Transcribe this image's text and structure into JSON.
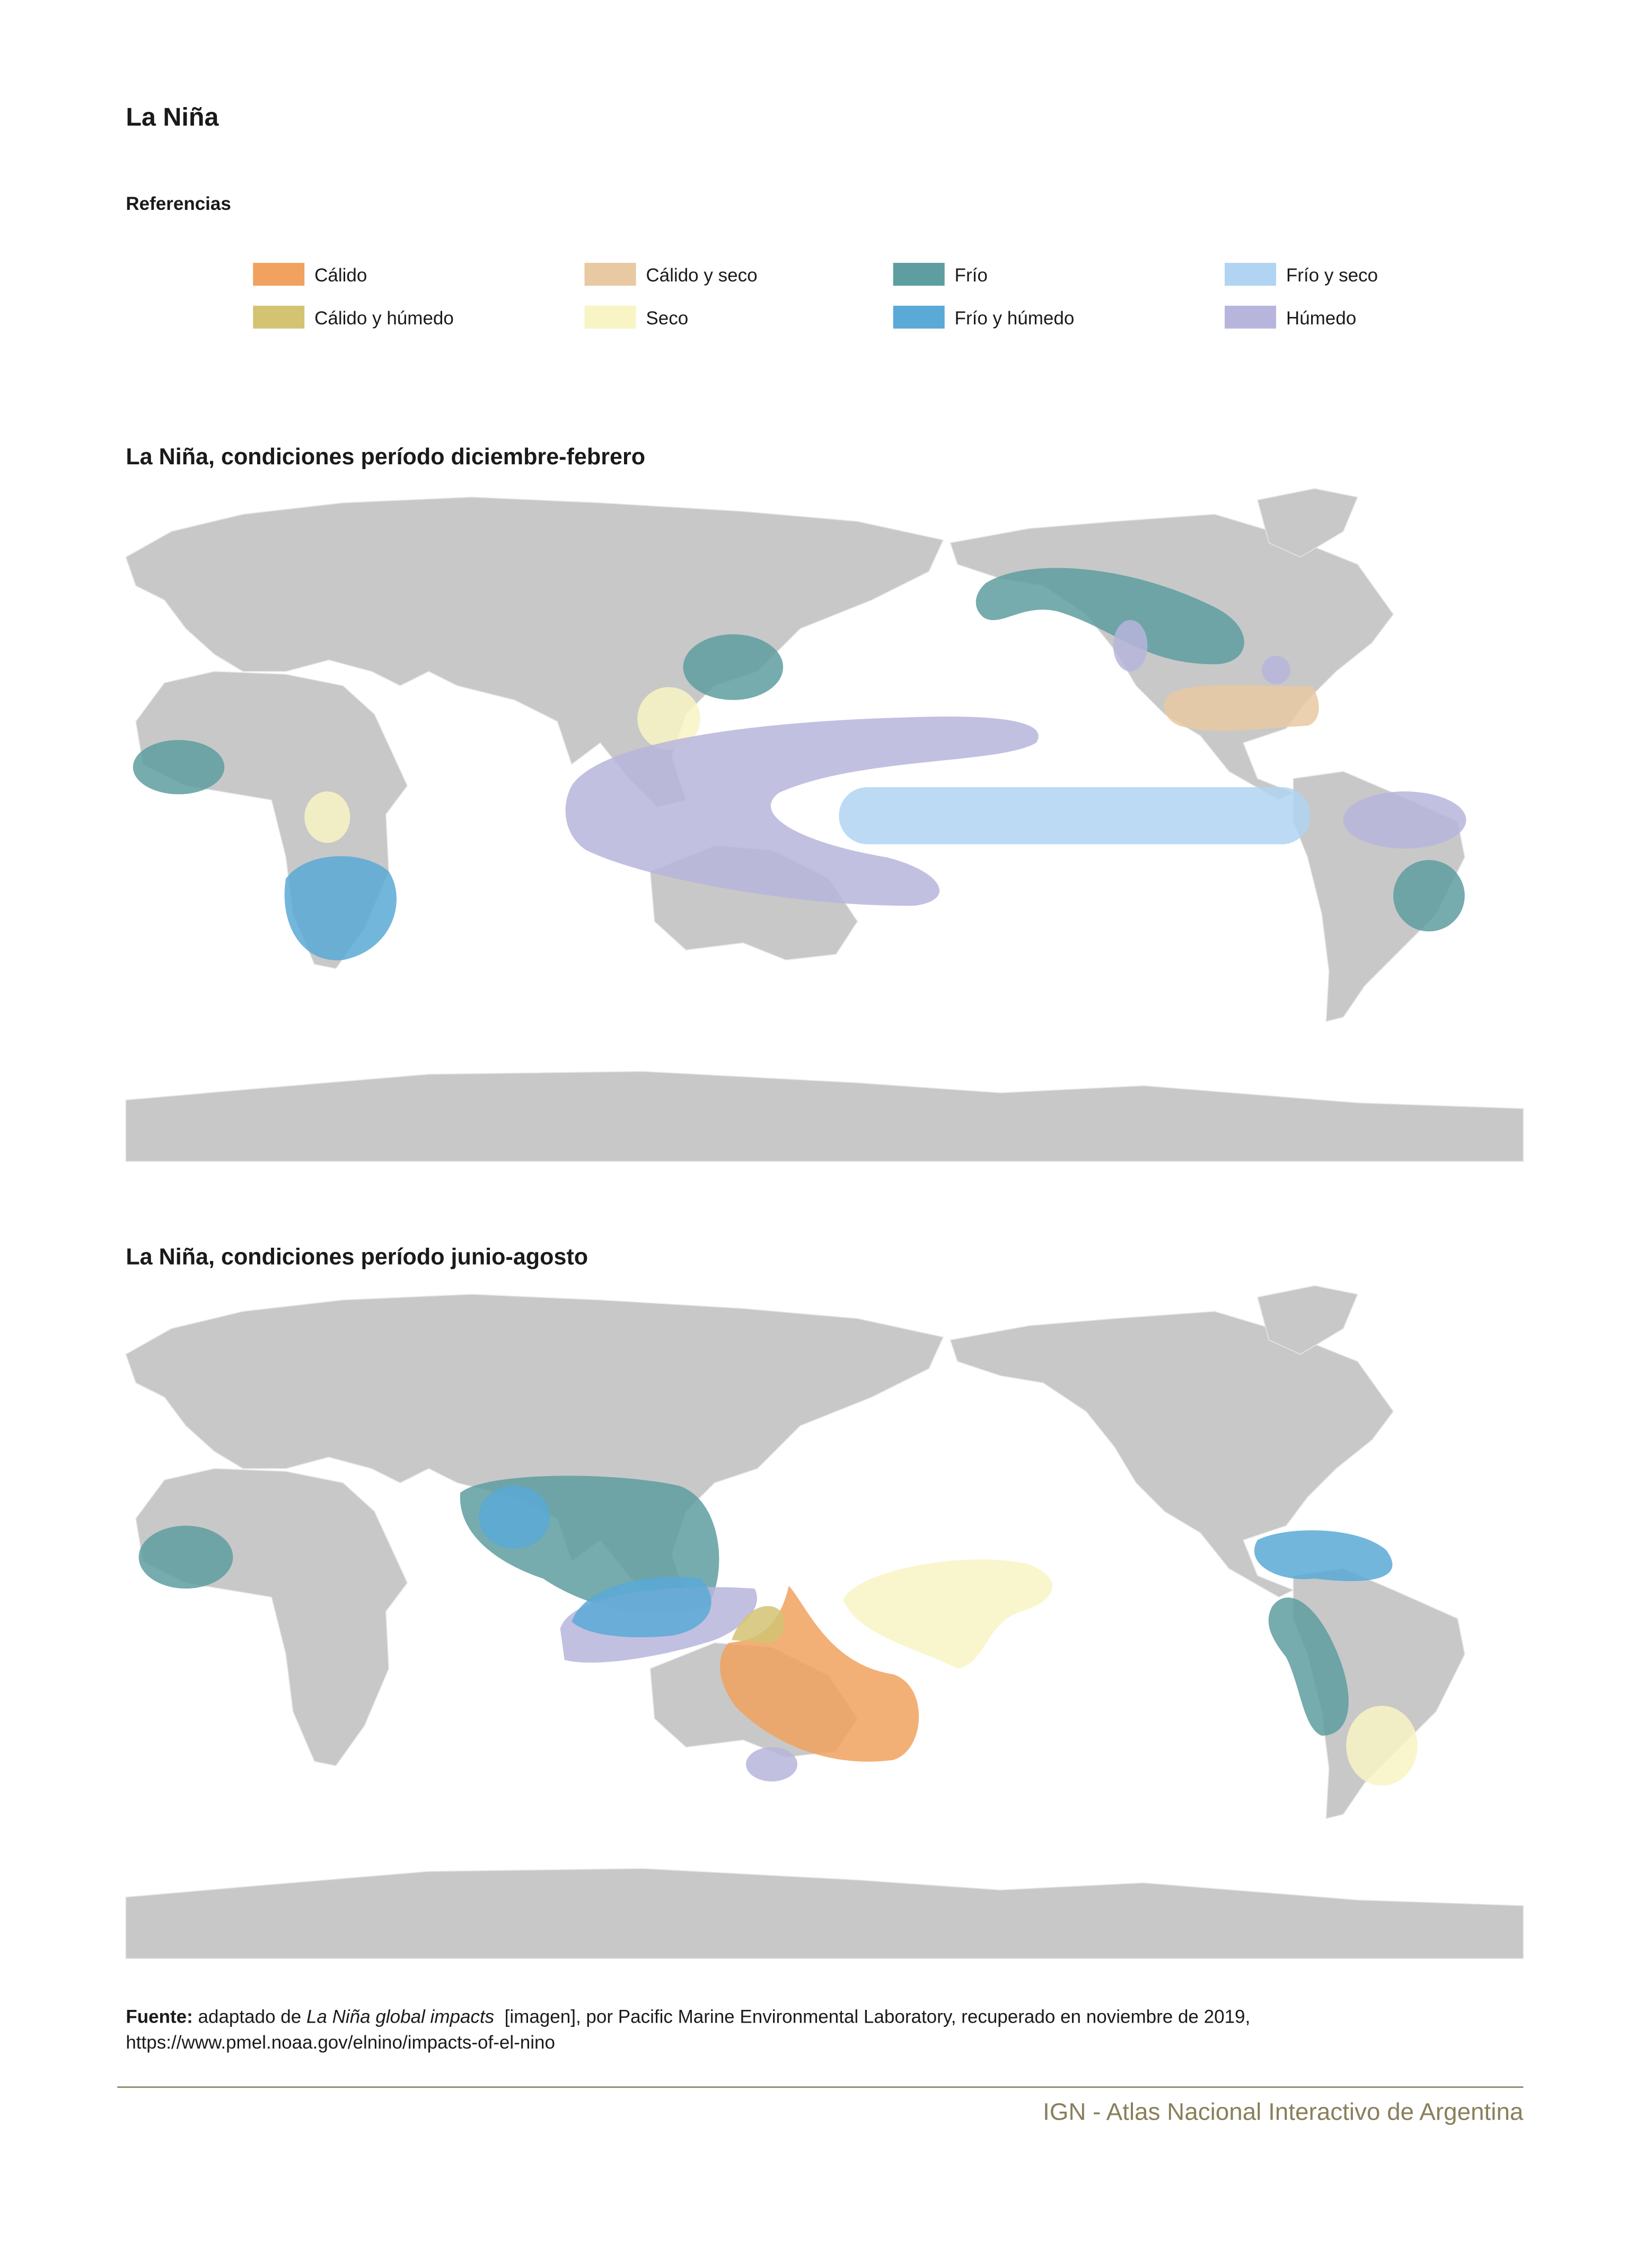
{
  "header": {
    "title": "La Niña",
    "legend_title": "Referencias"
  },
  "legend": [
    {
      "label": "Cálido",
      "color": "#f0a25e"
    },
    {
      "label": "Cálido y seco",
      "color": "#e8c9a2"
    },
    {
      "label": "Frío",
      "color": "#5e9ea0"
    },
    {
      "label": "Frío y seco",
      "color": "#b0d4f2"
    },
    {
      "label": "Cálido y húmedo",
      "color": "#d4c373"
    },
    {
      "label": "Seco",
      "color": "#f8f4c4"
    },
    {
      "label": "Frío y húmedo",
      "color": "#5aa9d6"
    },
    {
      "label": "Húmedo",
      "color": "#b7b5dc"
    }
  ],
  "maps": [
    {
      "title": "La Niña, condiciones período diciembre-febrero"
    },
    {
      "title": "La Niña, condiciones período junio-agosto"
    }
  ],
  "source": {
    "label": "Fuente:",
    "text_1": " adaptado de ",
    "work": "La Niña global impacts",
    "text_2": "  [imagen], por Pacific Marine Environmental Laboratory, recuperado en noviembre de 2019,",
    "url": "https://www.pmel.noaa.gov/elnino/impacts-of-el-nino"
  },
  "footer": {
    "text": "IGN - Atlas Nacional Interactivo de Argentina"
  }
}
